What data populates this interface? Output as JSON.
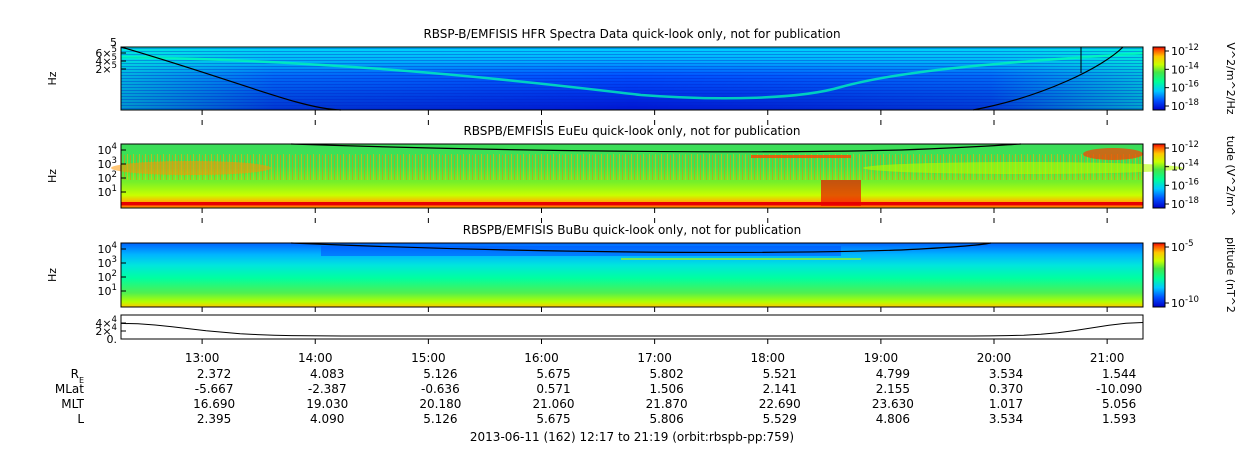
{
  "chart_data": {
    "type": "heatmap",
    "footer": "2013-06-11 (162) 12:17 to 21:19 (orbit:rbspb-pp:759)",
    "time_ticks": [
      "13:00",
      "14:00",
      "15:00",
      "16:00",
      "17:00",
      "18:00",
      "19:00",
      "20:00",
      "21:00"
    ],
    "time_range_hours": [
      12.283,
      21.317
    ],
    "ephemeris": [
      {
        "label": "R",
        "sub": "E",
        "values": [
          "2.372",
          "4.083",
          "5.126",
          "5.675",
          "5.802",
          "5.521",
          "4.799",
          "3.534",
          "1.544"
        ]
      },
      {
        "label": "MLat",
        "sub": "",
        "values": [
          "-5.667",
          "-2.387",
          "-0.636",
          "0.571",
          "1.506",
          "2.141",
          "2.155",
          "0.370",
          "-10.090"
        ]
      },
      {
        "label": "MLT",
        "sub": "",
        "values": [
          "16.690",
          "19.030",
          "20.180",
          "21.060",
          "21.870",
          "22.690",
          "23.630",
          "1.017",
          "5.056"
        ]
      },
      {
        "label": "L",
        "sub": "",
        "values": [
          "2.395",
          "4.090",
          "5.126",
          "5.675",
          "5.806",
          "5.529",
          "4.806",
          "3.534",
          "1.593"
        ]
      }
    ],
    "panels": [
      {
        "title": "RBSP-B/EMFISIS  HFR Spectra Data quick-look only, not for publication",
        "ylabel": "Hz",
        "yscale": "log",
        "yticks": [
          {
            "m": "6",
            "e": "5"
          },
          {
            "m": "4",
            "e": "5"
          },
          {
            "m": "2",
            "e": "5"
          }
        ],
        "ytop_extra": "5",
        "colorbar_label": "V^2/m^2/Hz",
        "colorbar_ticks": [
          {
            "m": "10",
            "e": "-12"
          },
          {
            "m": "10",
            "e": "-14"
          },
          {
            "m": "10",
            "e": "-16"
          },
          {
            "m": "10",
            "e": "-18"
          }
        ]
      },
      {
        "title": "RBSPB/EMFISIS  EuEu quick-look only, not for publication",
        "ylabel": "Hz",
        "yscale": "log",
        "yticks": [
          {
            "m": "10",
            "e": "4"
          },
          {
            "m": "10",
            "e": "3"
          },
          {
            "m": "10",
            "e": "2"
          },
          {
            "m": "10",
            "e": "1"
          }
        ],
        "colorbar_label": "tude (V^2/m^",
        "colorbar_ticks": [
          {
            "m": "10",
            "e": "-12"
          },
          {
            "m": "10",
            "e": "-14"
          },
          {
            "m": "10",
            "e": "-16"
          },
          {
            "m": "10",
            "e": "-18"
          }
        ]
      },
      {
        "title": "RBSPB/EMFISIS  BuBu quick-look only, not for publication",
        "ylabel": "Hz",
        "yscale": "log",
        "yticks": [
          {
            "m": "10",
            "e": "4"
          },
          {
            "m": "10",
            "e": "3"
          },
          {
            "m": "10",
            "e": "2"
          },
          {
            "m": "10",
            "e": "1"
          }
        ],
        "colorbar_label": "plitude (nT^2",
        "colorbar_ticks": [
          {
            "m": "10",
            "e": "-5"
          },
          {
            "m": "10",
            "e": "-10"
          }
        ]
      }
    ],
    "line_panel": {
      "yticks": [
        {
          "m": "4",
          "e": "4"
        },
        {
          "m": "2",
          "e": "4"
        },
        {
          "m": "0.",
          "e": ""
        }
      ]
    },
    "colors": {
      "axis": "#000000",
      "colormap": [
        "#0000c8",
        "#0050ff",
        "#00c8ff",
        "#00ff96",
        "#46e646",
        "#c8ff00",
        "#ffc800",
        "#ff5000",
        "#e60000"
      ]
    }
  }
}
